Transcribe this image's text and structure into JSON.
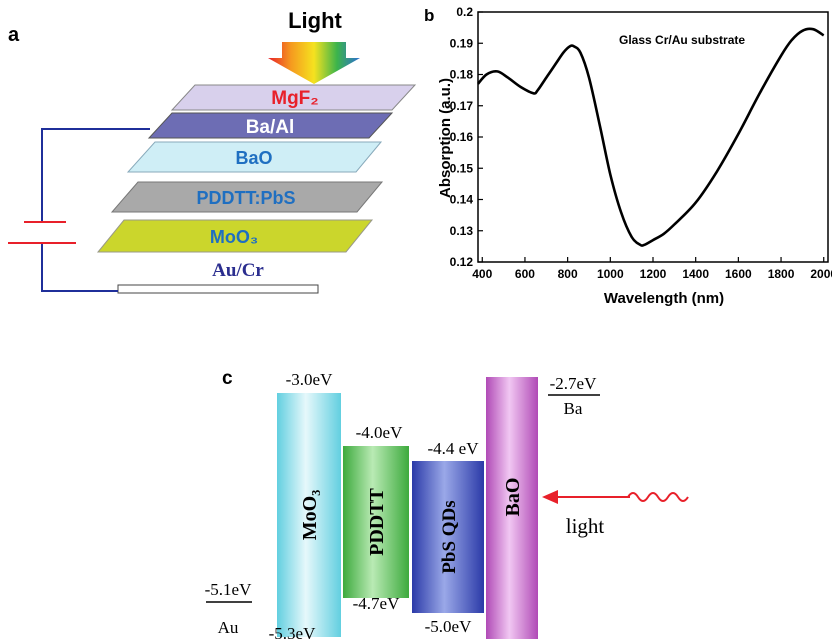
{
  "panel_a": {
    "label": "a",
    "light_label": "Light",
    "layers": [
      {
        "name": "MgF₂",
        "fill": "#d8d0ec",
        "text_color": "#e8202a"
      },
      {
        "name": "Ba/Al",
        "fill": "#6d6db4",
        "text_color": "#ffffff"
      },
      {
        "name": "BaO",
        "fill": "#cfeef6",
        "text_color": "#1f6fc1"
      },
      {
        "name": "PDDTT:PbS",
        "fill": "#a9a9a9",
        "text_color": "#1f6fc1"
      },
      {
        "name": "MoO₃",
        "fill": "#cbd62c",
        "text_color": "#1f6fc1"
      }
    ],
    "electrode_label": "Au/Cr",
    "wire_color": "#1f2f9a",
    "battery_color": "#e8202a"
  },
  "panel_b": {
    "label": "b",
    "annotation": "Glass Cr/Au substrate"
  },
  "chart_data": {
    "type": "line",
    "xlabel": "Wavelength (nm)",
    "ylabel": "Absorption (a.u.)",
    "xlim": [
      380,
      2020
    ],
    "ylim": [
      0.12,
      0.2
    ],
    "xticks": [
      400,
      600,
      800,
      1000,
      1200,
      1400,
      1600,
      1800,
      2000
    ],
    "yticks": [
      0.12,
      0.13,
      0.14,
      0.15,
      0.16,
      0.17,
      0.18,
      0.19,
      0.2
    ],
    "ytick_labels": [
      "0.12",
      "0.13",
      "0.14",
      "0.15",
      "0.16",
      "0.17",
      "0.18",
      "0.19",
      "0.2"
    ],
    "grid": false,
    "series": [
      {
        "x": [
          380,
          420,
          470,
          520,
          580,
          640,
          660,
          700,
          740,
          780,
          810,
          830,
          860,
          900,
          950,
          1000,
          1050,
          1100,
          1140,
          1160,
          1200,
          1250,
          1300,
          1400,
          1500,
          1600,
          1700,
          1800,
          1850,
          1900,
          1950,
          2000
        ],
        "y": [
          0.177,
          0.18,
          0.181,
          0.179,
          0.176,
          0.174,
          0.175,
          0.179,
          0.183,
          0.187,
          0.189,
          0.189,
          0.187,
          0.179,
          0.164,
          0.148,
          0.136,
          0.128,
          0.1255,
          0.1255,
          0.127,
          0.129,
          0.132,
          0.139,
          0.149,
          0.161,
          0.174,
          0.186,
          0.191,
          0.194,
          0.1945,
          0.1925
        ],
        "color": "#000000"
      }
    ]
  },
  "panel_c": {
    "label": "c",
    "light_label": "light",
    "au": {
      "energy": "-5.1eV",
      "name": "Au"
    },
    "ba": {
      "energy": "-2.7eV",
      "name": "Ba"
    },
    "blocks": [
      {
        "name": "MoO₃",
        "top_energy": "-3.0eV",
        "bottom_energy": "-5.3eV",
        "color": "#62cfe0"
      },
      {
        "name": "PDDTT",
        "top_energy": "-4.0eV",
        "bottom_energy": "-4.7eV",
        "color": "#3daa3d"
      },
      {
        "name": "PbS QDs",
        "top_energy": "-4.4 eV",
        "bottom_energy": "-5.0eV",
        "color": "#2b3aa8"
      },
      {
        "name": "BaO",
        "top_energy": "",
        "bottom_energy": "",
        "color": "#b04ab6"
      }
    ],
    "arrow_color": "#e8202a"
  }
}
